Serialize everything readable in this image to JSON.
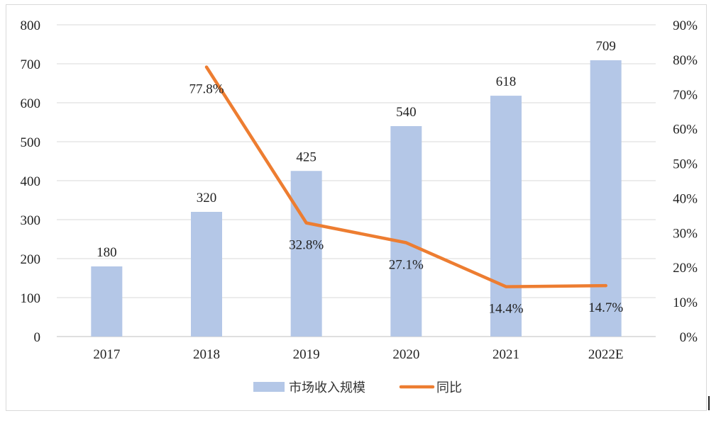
{
  "chart_data": {
    "type": "bar",
    "categories": [
      "2017",
      "2018",
      "2019",
      "2020",
      "2021",
      "2022E"
    ],
    "series": [
      {
        "name": "市场收入规模",
        "type": "bar",
        "axis": "left",
        "values": [
          180,
          320,
          425,
          540,
          618,
          709
        ],
        "labels": [
          "180",
          "320",
          "425",
          "540",
          "618",
          "709"
        ],
        "color": "#b4c7e7"
      },
      {
        "name": "同比",
        "type": "line",
        "axis": "right",
        "values": [
          null,
          77.8,
          32.8,
          27.1,
          14.4,
          14.7
        ],
        "labels": [
          "",
          "77.8%",
          "32.8%",
          "27.1%",
          "14.4%",
          "14.7%"
        ],
        "color": "#ed7d31"
      }
    ],
    "y_left": {
      "min": 0,
      "max": 800,
      "step": 100,
      "ticks": [
        "0",
        "100",
        "200",
        "300",
        "400",
        "500",
        "600",
        "700",
        "800"
      ]
    },
    "y_right": {
      "min": 0,
      "max": 90,
      "step": 10,
      "ticks": [
        "0%",
        "10%",
        "20%",
        "30%",
        "40%",
        "50%",
        "60%",
        "70%",
        "80%",
        "90%"
      ]
    },
    "grid": true,
    "legend": "bottom-center"
  }
}
